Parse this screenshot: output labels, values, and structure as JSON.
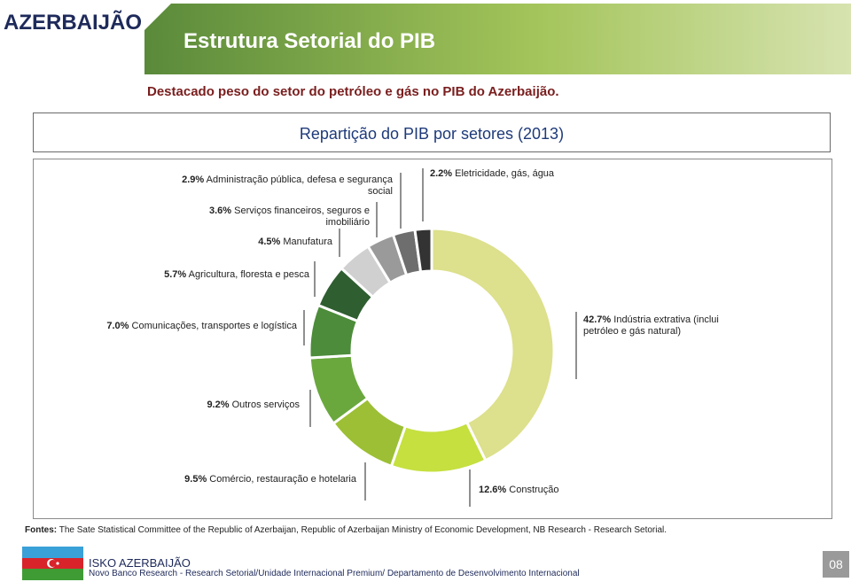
{
  "header": {
    "country": "AZERBAIJÃO",
    "title": "Estrutura Setorial do PIB"
  },
  "subtitle": "Destacado peso do setor do petróleo e gás no PIB do Azerbaijão.",
  "chart_data": {
    "type": "pie",
    "donut": true,
    "title": "Repartição do PIB por setores (2013)",
    "categories": [
      "Indústria extrativa (inclui petróleo e gás natural)",
      "Construção",
      "Comércio, restauração e hotelaria",
      "Outros serviços",
      "Comunicações, transportes e logística",
      "Agricultura, floresta e pesca",
      "Manufatura",
      "Serviços financeiros, seguros e imobiliário",
      "Administração pública, defesa e segurança social",
      "Eletricidade, gás, água"
    ],
    "values": [
      42.7,
      12.6,
      9.5,
      9.2,
      7.0,
      5.7,
      4.5,
      3.6,
      2.9,
      2.2
    ],
    "value_labels": [
      "42.7%",
      "12.6%",
      "9.5%",
      "9.2%",
      "7.0%",
      "5.7%",
      "4.5%",
      "3.6%",
      "2.9%",
      "2.2%"
    ],
    "colors": [
      "#dde08c",
      "#c5e03f",
      "#9cbf35",
      "#6aa83e",
      "#4c8c3a",
      "#2f5e30",
      "#d0d0d0",
      "#9a9a9a",
      "#6e6e6e",
      "#333333"
    ]
  },
  "sources": {
    "label": "Fontes:",
    "text": "The Sate Statistical Committee  of the Republic of Azerbaijan, Republic of Azerbaijan Ministry of Economic Development, NB Research - Research Setorial."
  },
  "footer": {
    "brand": "ISKO AZERBAIJÃO",
    "text": "Novo Banco Research - Research Setorial/Unidade Internacional Premium/  Departamento de Desenvolvimento Internacional",
    "page": "08"
  }
}
